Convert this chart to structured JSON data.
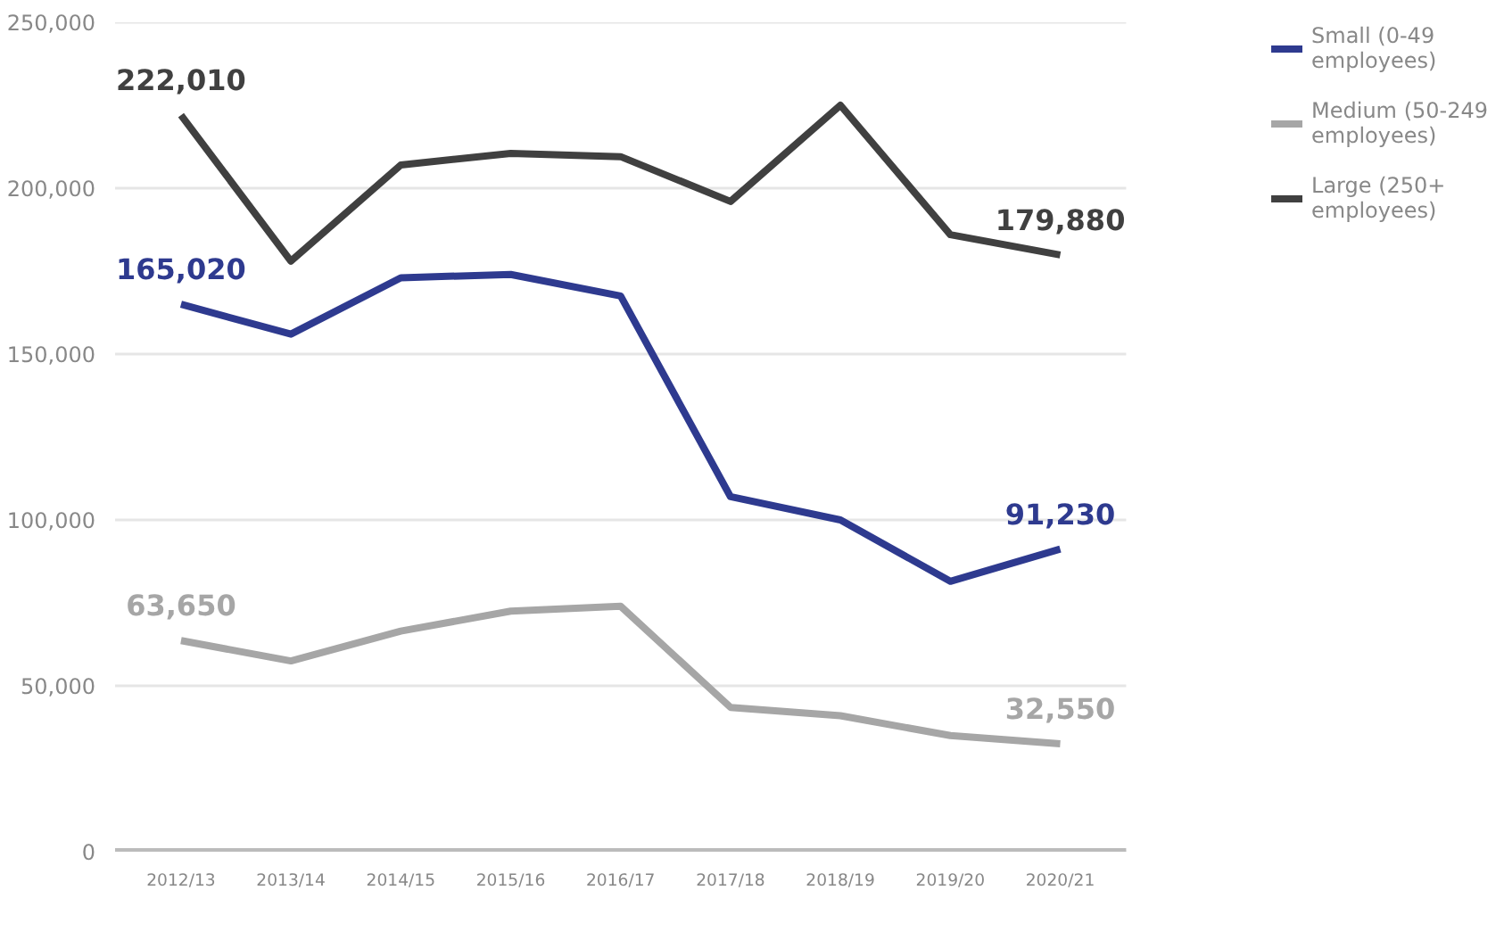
{
  "chart_data": {
    "type": "line",
    "categories": [
      "2012/13",
      "2013/14",
      "2014/15",
      "2015/16",
      "2016/17",
      "2017/18",
      "2018/19",
      "2019/20",
      "2020/21"
    ],
    "series": [
      {
        "name": "Small (0-49 employees)",
        "color": "#2e3a8f",
        "values": [
          165020,
          156000,
          173000,
          174000,
          167500,
          107000,
          100000,
          81500,
          91230
        ],
        "value_labels": [
          "165,020",
          null,
          null,
          null,
          null,
          null,
          null,
          null,
          "91,230"
        ]
      },
      {
        "name": "Medium (50-249 employees)",
        "color": "#a6a6a6",
        "values": [
          63650,
          57500,
          66500,
          72500,
          74000,
          43500,
          41000,
          35000,
          32550
        ],
        "value_labels": [
          "63,650",
          null,
          null,
          null,
          null,
          null,
          null,
          null,
          "32,550"
        ]
      },
      {
        "name": "Large (250+ employees)",
        "color": "#404040",
        "values": [
          222010,
          178000,
          207000,
          210500,
          209500,
          196000,
          225000,
          186000,
          179880
        ],
        "value_labels": [
          "222,010",
          null,
          null,
          null,
          null,
          null,
          null,
          null,
          "179,880"
        ]
      }
    ],
    "ylim": [
      0,
      250000
    ],
    "yticks": [
      {
        "value": 0,
        "label": "0"
      },
      {
        "value": 50000,
        "label": "50,000"
      },
      {
        "value": 100000,
        "label": "100,000"
      },
      {
        "value": 150000,
        "label": "150,000"
      },
      {
        "value": 200000,
        "label": "200,000"
      },
      {
        "value": 250000,
        "label": "250,000"
      }
    ],
    "grid": "y",
    "legend": "top right"
  }
}
